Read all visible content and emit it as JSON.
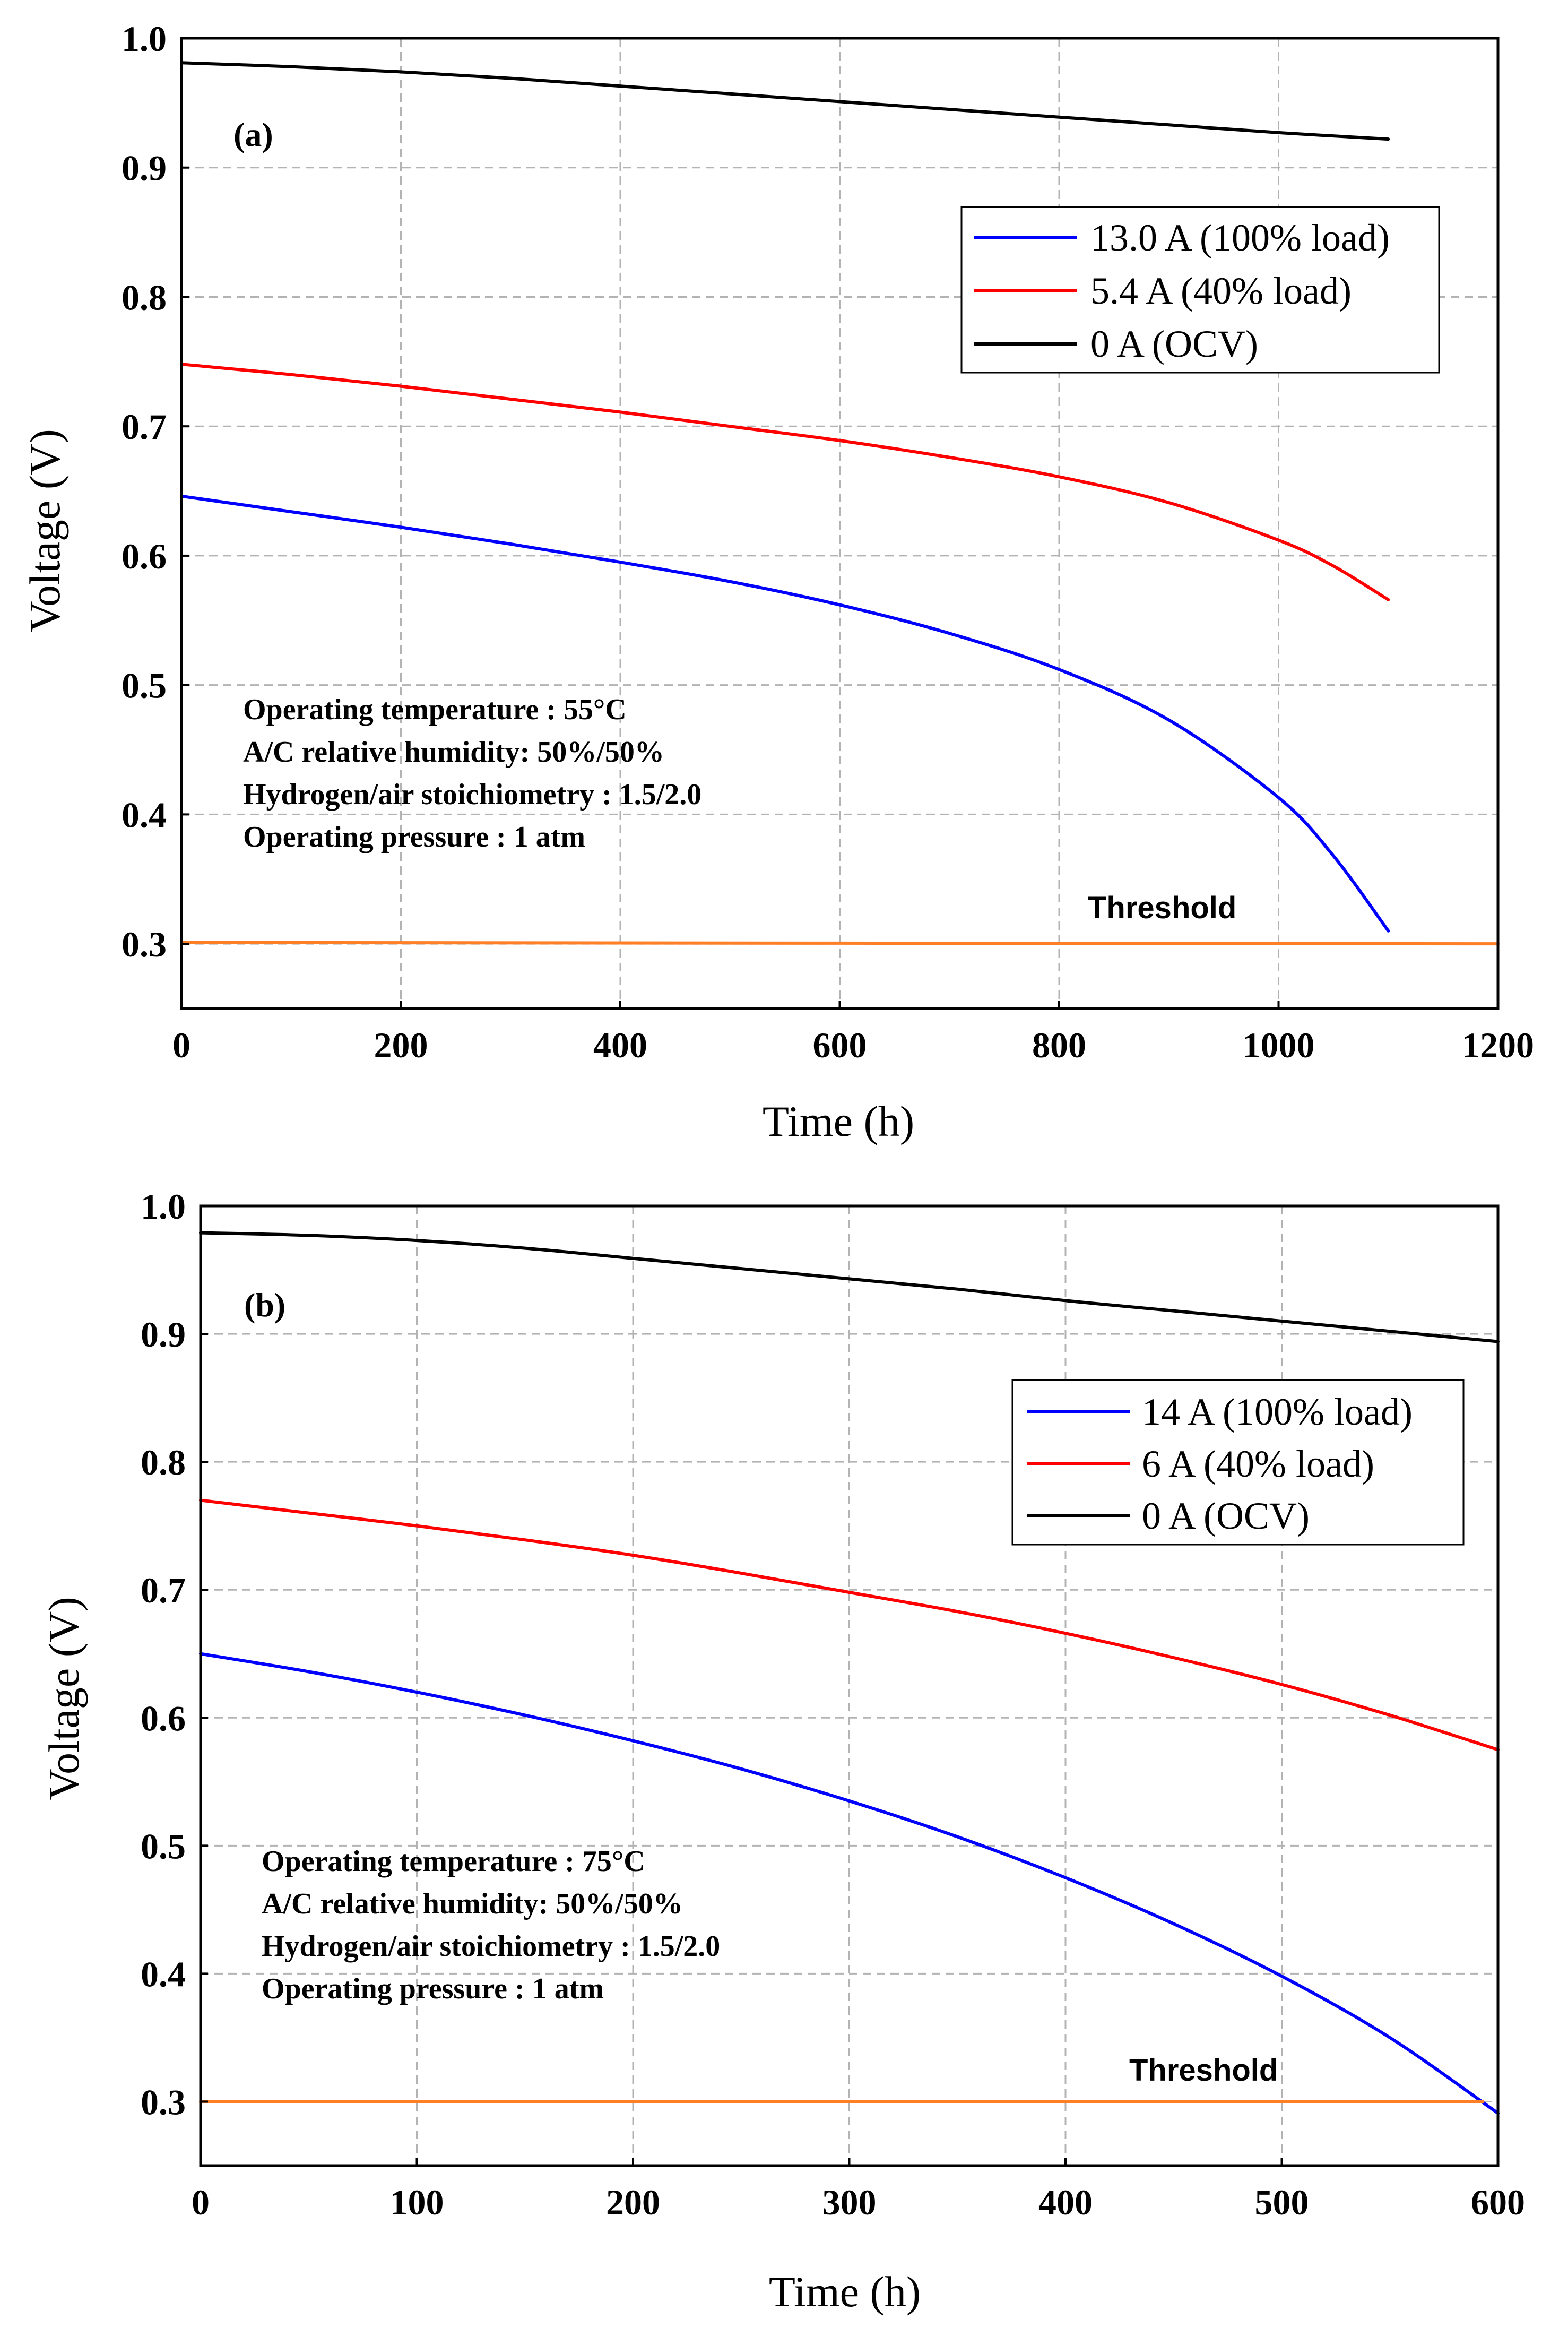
{
  "chart_data": [
    {
      "type": "line",
      "panel_label": "(a)",
      "xlabel": "Time (h)",
      "ylabel": "Voltage (V)",
      "xlim": [
        0,
        1200
      ],
      "ylim": [
        0.25,
        1.0
      ],
      "xticks": [
        0,
        200,
        400,
        600,
        800,
        1000,
        1200
      ],
      "xtick_labels": [
        "0",
        "200",
        "400",
        "600",
        "800",
        "1000",
        "1200"
      ],
      "yticks": [
        0.3,
        0.4,
        0.5,
        0.6,
        0.7,
        0.8,
        0.9,
        1.0
      ],
      "ytick_labels": [
        "0.3",
        "0.4",
        "0.5",
        "0.6",
        "0.7",
        "0.8",
        "0.9",
        "1.0"
      ],
      "grid": true,
      "legend_position": "top-right",
      "series": [
        {
          "name": "13.0 A (100% load)",
          "color": "#0000ff",
          "x": [
            0,
            100,
            200,
            300,
            400,
            500,
            600,
            700,
            800,
            900,
            1000,
            1050,
            1100
          ],
          "y": [
            0.646,
            0.634,
            0.622,
            0.609,
            0.595,
            0.58,
            0.562,
            0.54,
            0.512,
            0.473,
            0.413,
            0.368,
            0.31
          ]
        },
        {
          "name": "5.4 A (40% load)",
          "color": "#ff0000",
          "x": [
            0,
            100,
            200,
            300,
            400,
            500,
            600,
            700,
            800,
            900,
            1000,
            1050,
            1100
          ],
          "y": [
            0.748,
            0.74,
            0.731,
            0.721,
            0.711,
            0.7,
            0.689,
            0.676,
            0.661,
            0.641,
            0.612,
            0.592,
            0.566
          ]
        },
        {
          "name": "0 A (OCV)",
          "color": "#000000",
          "x": [
            0,
            100,
            200,
            300,
            400,
            500,
            600,
            700,
            800,
            900,
            1000,
            1100
          ],
          "y": [
            0.981,
            0.978,
            0.974,
            0.969,
            0.963,
            0.957,
            0.951,
            0.945,
            0.939,
            0.933,
            0.927,
            0.922
          ]
        },
        {
          "name": "Threshold",
          "color": "#ff7f27",
          "legend": false,
          "x": [
            0,
            1200
          ],
          "y": [
            0.301,
            0.3
          ]
        }
      ],
      "threshold_label": "Threshold",
      "annotations": [
        "Operating temperature : 55°C",
        "A/C relative humidity: 50%/50%",
        "Hydrogen/air stoichiometry : 1.5/2.0",
        "Operating pressure : 1 atm"
      ]
    },
    {
      "type": "line",
      "panel_label": "(b)",
      "xlabel": "Time (h)",
      "ylabel": "Voltage (V)",
      "xlim": [
        0,
        600
      ],
      "ylim": [
        0.25,
        1.0
      ],
      "xticks": [
        0,
        100,
        200,
        300,
        400,
        500,
        600
      ],
      "xtick_labels": [
        "0",
        "100",
        "200",
        "300",
        "400",
        "500",
        "600"
      ],
      "yticks": [
        0.3,
        0.4,
        0.5,
        0.6,
        0.7,
        0.8,
        0.9,
        1.0
      ],
      "ytick_labels": [
        "0.3",
        "0.4",
        "0.5",
        "0.6",
        "0.7",
        "0.8",
        "0.9",
        "1.0"
      ],
      "grid": true,
      "legend_position": "top-right",
      "series": [
        {
          "name": "14 A (100% load)",
          "color": "#0000ff",
          "x": [
            0,
            50,
            100,
            150,
            200,
            250,
            300,
            350,
            400,
            450,
            500,
            550,
            600
          ],
          "y": [
            0.65,
            0.636,
            0.62,
            0.602,
            0.582,
            0.56,
            0.535,
            0.507,
            0.475,
            0.439,
            0.398,
            0.35,
            0.291
          ]
        },
        {
          "name": "6 A (40% load)",
          "color": "#ff0000",
          "x": [
            0,
            50,
            100,
            150,
            200,
            250,
            300,
            350,
            400,
            450,
            500,
            550,
            600
          ],
          "y": [
            0.77,
            0.76,
            0.75,
            0.739,
            0.727,
            0.713,
            0.698,
            0.683,
            0.666,
            0.647,
            0.626,
            0.602,
            0.575
          ]
        },
        {
          "name": "0 A (OCV)",
          "color": "#000000",
          "x": [
            0,
            50,
            100,
            150,
            200,
            250,
            300,
            350,
            400,
            450,
            500,
            550,
            600
          ],
          "y": [
            0.979,
            0.977,
            0.973,
            0.967,
            0.959,
            0.951,
            0.943,
            0.935,
            0.926,
            0.918,
            0.91,
            0.902,
            0.894
          ]
        },
        {
          "name": "Threshold",
          "color": "#ff7f27",
          "legend": false,
          "x": [
            0,
            593
          ],
          "y": [
            0.3,
            0.3
          ]
        }
      ],
      "threshold_label": "Threshold",
      "annotations": [
        "Operating temperature : 75°C",
        "A/C relative humidity: 50%/50%",
        "Hydrogen/air stoichiometry : 1.5/2.0",
        "Operating pressure : 1 atm"
      ]
    }
  ]
}
